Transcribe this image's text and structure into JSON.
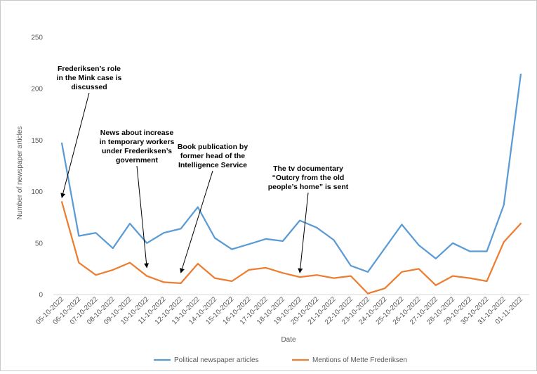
{
  "chart_data": {
    "type": "line",
    "title": "",
    "xlabel": "Date",
    "ylabel": "Number of newspaper articles",
    "ylim": [
      0,
      250
    ],
    "yticks": [
      0,
      50,
      100,
      150,
      200,
      250
    ],
    "grid": false,
    "legend": "bottom",
    "categories": [
      "05-10-2022",
      "06-10-2022",
      "07-10-2022",
      "08-10-2022",
      "09-10-2022",
      "10-10-2022",
      "11-10-2022",
      "12-10-2022",
      "13-10-2022",
      "14-10-2022",
      "15-10-2022",
      "16-10-2022",
      "17-10-2022",
      "18-10-2022",
      "19-10-2022",
      "20-10-2022",
      "21-10-2022",
      "22-10-2022",
      "23-10-2022",
      "24-10-2022",
      "25-10-2022",
      "26-10-2022",
      "27-10-2022",
      "28-10-2022",
      "29-10-2022",
      "30-10-2022",
      "31-10-2022",
      "01-11-2022"
    ],
    "series": [
      {
        "name": "Political newspaper articles",
        "color": "#5b9bd5",
        "values": [
          147,
          57,
          60,
          45,
          69,
          50,
          60,
          64,
          85,
          55,
          44,
          49,
          54,
          52,
          72,
          65,
          53,
          28,
          22,
          45,
          68,
          48,
          35,
          50,
          42,
          42,
          87,
          214
        ]
      },
      {
        "name": "Mentions of Mette Frederiksen",
        "color": "#ed7d31",
        "values": [
          90,
          31,
          19,
          24,
          31,
          18,
          12,
          11,
          30,
          16,
          13,
          24,
          26,
          21,
          17,
          19,
          16,
          18,
          1,
          6,
          22,
          25,
          9,
          18,
          16,
          13,
          51,
          69
        ]
      }
    ],
    "annotations": [
      {
        "lines": [
          "Frederiksen’s role",
          "in the Mink case is",
          "discussed"
        ],
        "category": "05-10-2022",
        "value": 90
      },
      {
        "lines": [
          "News about increase",
          "in temporary workers",
          "under Frederiksen’s",
          "government"
        ],
        "category": "10-10-2022",
        "value": 22
      },
      {
        "lines": [
          "Book publication by",
          "former head of the",
          "Intelligence Service"
        ],
        "category": "12-10-2022",
        "value": 17
      },
      {
        "lines": [
          "The tv documentary",
          "“Outcry from the old",
          "people’s home” is sent"
        ],
        "category": "19-10-2022",
        "value": 17
      }
    ]
  }
}
